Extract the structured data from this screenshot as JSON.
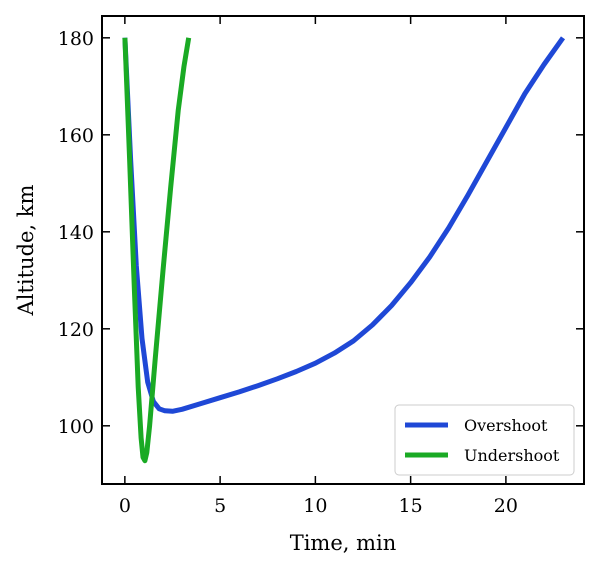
{
  "chart_data": {
    "type": "line",
    "title": "",
    "xlabel": "Time, min",
    "ylabel": "Altitude, km",
    "xlim": [
      -1.2,
      24.1
    ],
    "ylim": [
      88,
      184.5
    ],
    "xticks": [
      0,
      5,
      10,
      15,
      20
    ],
    "yticks": [
      100,
      120,
      140,
      160,
      180
    ],
    "x_tick_labels": [
      "0",
      "5",
      "10",
      "15",
      "20"
    ],
    "y_tick_labels": [
      "100",
      "120",
      "140",
      "160",
      "180"
    ],
    "grid": false,
    "legend_position": "lower-right",
    "series": [
      {
        "name": "Overshoot",
        "color": "#1f48d6",
        "x": [
          0.0,
          0.3,
          0.6,
          0.9,
          1.2,
          1.5,
          1.8,
          2.1,
          2.5,
          3.0,
          4.0,
          5.0,
          6.0,
          7.0,
          8.0,
          9.0,
          10.0,
          11.0,
          12.0,
          13.0,
          14.0,
          15.0,
          16.0,
          17.0,
          18.0,
          19.0,
          20.0,
          21.0,
          22.0,
          23.0
        ],
        "y": [
          180.0,
          155.0,
          133.0,
          118.0,
          109.0,
          105.0,
          103.5,
          103.1,
          103.0,
          103.4,
          104.6,
          105.8,
          107.0,
          108.3,
          109.7,
          111.2,
          112.9,
          115.0,
          117.5,
          120.8,
          124.8,
          129.5,
          134.8,
          140.8,
          147.5,
          154.5,
          161.5,
          168.5,
          174.5,
          180.0
        ]
      },
      {
        "name": "Undershoot",
        "color": "#1aaa24",
        "x": [
          0.0,
          0.25,
          0.5,
          0.7,
          0.85,
          0.95,
          1.05,
          1.15,
          1.3,
          1.6,
          2.0,
          2.4,
          2.8,
          3.1,
          3.35
        ],
        "y": [
          180.0,
          155.0,
          128.0,
          108.0,
          97.5,
          93.5,
          92.8,
          94.5,
          100.0,
          114.0,
          132.0,
          149.0,
          165.0,
          174.0,
          180.0
        ]
      }
    ]
  }
}
